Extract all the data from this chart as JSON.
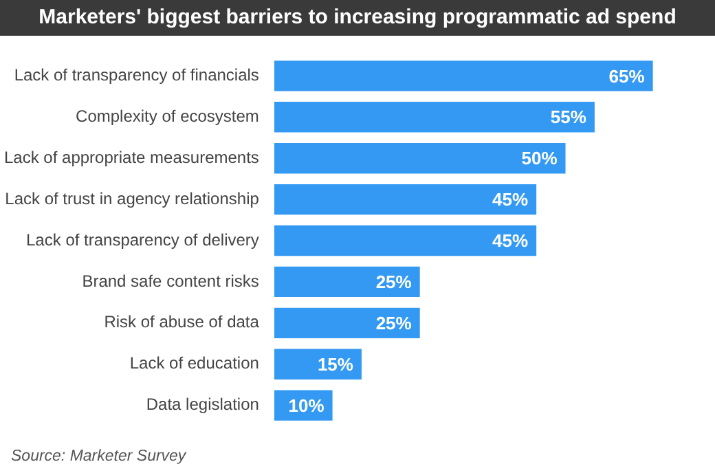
{
  "chart_data": {
    "type": "bar",
    "orientation": "horizontal",
    "title": "Marketers' biggest barriers to increasing programmatic ad spend",
    "categories": [
      "Lack of transparency of financials",
      "Complexity of ecosystem",
      "Lack of appropriate measurements",
      "Lack of trust in agency relationship",
      "Lack of transparency of delivery",
      "Brand safe content risks",
      "Risk of abuse of data",
      "Lack of education",
      "Data legislation"
    ],
    "values": [
      65,
      55,
      50,
      45,
      45,
      25,
      25,
      15,
      10
    ],
    "value_labels": [
      "65%",
      "55%",
      "50%",
      "45%",
      "45%",
      "25%",
      "25%",
      "15%",
      "10%"
    ],
    "color": "#3399f3",
    "grid": false,
    "legend": false,
    "annotations": [
      "Source: Marketer Survey"
    ]
  }
}
